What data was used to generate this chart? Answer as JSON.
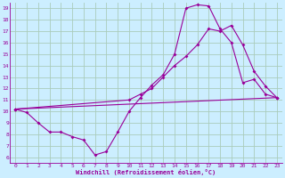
{
  "xlabel": "Windchill (Refroidissement éolien,°C)",
  "bg_color": "#cceeff",
  "grid_color": "#aaccbb",
  "line_color": "#990099",
  "xlim": [
    -0.5,
    23.5
  ],
  "ylim": [
    5.5,
    19.5
  ],
  "xticks": [
    0,
    1,
    2,
    3,
    4,
    5,
    6,
    7,
    8,
    9,
    10,
    11,
    12,
    13,
    14,
    15,
    16,
    17,
    18,
    19,
    20,
    21,
    22,
    23
  ],
  "yticks": [
    6,
    7,
    8,
    9,
    10,
    11,
    12,
    13,
    14,
    15,
    16,
    17,
    18,
    19
  ],
  "line1_x": [
    0,
    1,
    2,
    3,
    4,
    5,
    6,
    7,
    8,
    9,
    10,
    11,
    12,
    13,
    14,
    15,
    16,
    17,
    18,
    19,
    20,
    21,
    22,
    23
  ],
  "line1_y": [
    10.2,
    9.9,
    9.0,
    8.2,
    8.2,
    7.8,
    7.5,
    6.2,
    6.5,
    8.2,
    10.0,
    11.2,
    12.3,
    13.2,
    15.0,
    19.0,
    19.3,
    19.2,
    17.2,
    16.0,
    12.5,
    12.8,
    11.5,
    11.2
  ],
  "line2_x": [
    0,
    10,
    11,
    12,
    13,
    14,
    15,
    16,
    17,
    18,
    19,
    20,
    21,
    22,
    23
  ],
  "line2_y": [
    10.2,
    11.0,
    11.5,
    12.0,
    13.0,
    14.0,
    14.8,
    15.8,
    17.2,
    17.0,
    17.5,
    15.8,
    13.5,
    12.2,
    11.2
  ],
  "line3_x": [
    0,
    23
  ],
  "line3_y": [
    10.2,
    11.2
  ]
}
